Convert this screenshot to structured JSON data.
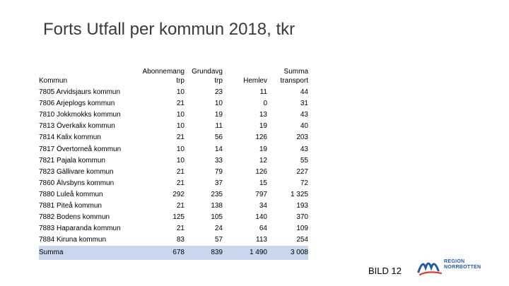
{
  "slide": {
    "title": "Forts Utfall per kommun 2018, tkr",
    "footer": "BILD 12"
  },
  "logo": {
    "line1": "REGION",
    "line2": "NORRBOTTEN",
    "color": "#1f5aa8",
    "icon": "region-norrbotten-logo-icon"
  },
  "table": {
    "headers": {
      "kommun": "Kommun",
      "abonnemang_l1": "Abonnemang",
      "abonnemang_l2": "trp",
      "grundavg_l1": "Grundavg",
      "grundavg_l2": "trp",
      "hemlev": "Hemlev",
      "summa_l1": "Summa",
      "summa_l2": "transport"
    },
    "rows": [
      {
        "kommun": "7805 Arvidsjaurs kommun",
        "abonnemang": "10",
        "grundavg": "23",
        "hemlev": "11",
        "summa": "44"
      },
      {
        "kommun": "7806 Arjeplogs kommun",
        "abonnemang": "21",
        "grundavg": "10",
        "hemlev": "0",
        "summa": "31"
      },
      {
        "kommun": "7810 Jokkmokks kommun",
        "abonnemang": "10",
        "grundavg": "19",
        "hemlev": "13",
        "summa": "43"
      },
      {
        "kommun": "7813 Överkalix kommun",
        "abonnemang": "10",
        "grundavg": "11",
        "hemlev": "19",
        "summa": "40"
      },
      {
        "kommun": "7814 Kalix kommun",
        "abonnemang": "21",
        "grundavg": "56",
        "hemlev": "126",
        "summa": "203"
      },
      {
        "kommun": "7817 Övertorneå kommun",
        "abonnemang": "10",
        "grundavg": "14",
        "hemlev": "19",
        "summa": "43"
      },
      {
        "kommun": "7821 Pajala kommun",
        "abonnemang": "10",
        "grundavg": "33",
        "hemlev": "12",
        "summa": "55"
      },
      {
        "kommun": "7823 Gällivare kommun",
        "abonnemang": "21",
        "grundavg": "79",
        "hemlev": "126",
        "summa": "227"
      },
      {
        "kommun": "7860 Älvsbyns kommun",
        "abonnemang": "21",
        "grundavg": "37",
        "hemlev": "15",
        "summa": "72"
      },
      {
        "kommun": "7880 Luleå kommun",
        "abonnemang": "292",
        "grundavg": "235",
        "hemlev": "797",
        "summa": "1 325"
      },
      {
        "kommun": "7881 Piteå kommun",
        "abonnemang": "21",
        "grundavg": "138",
        "hemlev": "34",
        "summa": "193"
      },
      {
        "kommun": "7882 Bodens kommun",
        "abonnemang": "125",
        "grundavg": "105",
        "hemlev": "140",
        "summa": "370"
      },
      {
        "kommun": "7883 Haparanda kommun",
        "abonnemang": "21",
        "grundavg": "24",
        "hemlev": "64",
        "summa": "109"
      },
      {
        "kommun": "7884 Kiruna kommun",
        "abonnemang": "83",
        "grundavg": "57",
        "hemlev": "113",
        "summa": "254"
      }
    ],
    "total": {
      "label": "Summa",
      "abonnemang": "678",
      "grundavg": "839",
      "hemlev": "1 490",
      "summa": "3 008"
    },
    "total_row_color": "#c9d7ee"
  }
}
